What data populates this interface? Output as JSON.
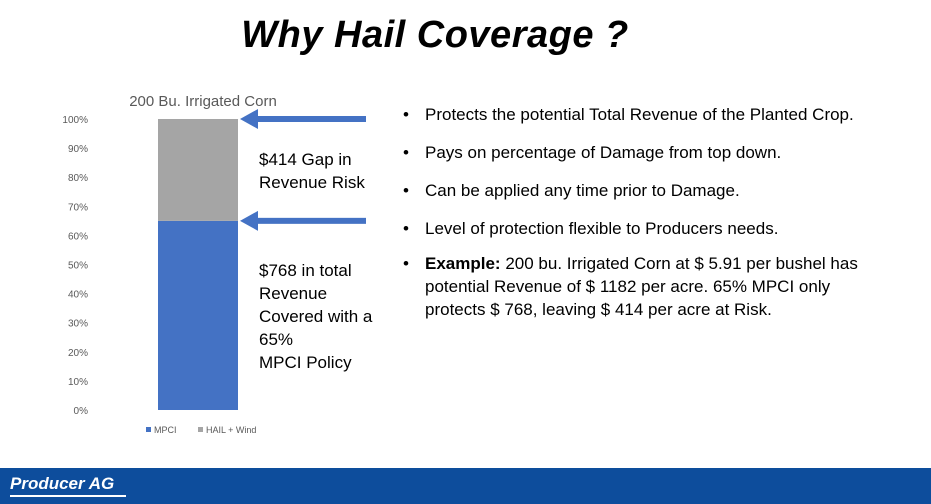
{
  "slide": {
    "title": "Why Hail Coverage ?"
  },
  "chart_data": {
    "type": "bar",
    "stacked": true,
    "title": "200 Bu. Irrigated Corn",
    "categories": [
      ""
    ],
    "series": [
      {
        "name": "MPCI",
        "values": [
          65
        ],
        "color": "#4472c4"
      },
      {
        "name": "HAIL + Wind",
        "values": [
          35
        ],
        "color": "#a5a5a5"
      }
    ],
    "ylim": [
      0,
      100
    ],
    "yticks": [
      0,
      10,
      20,
      30,
      40,
      50,
      60,
      70,
      80,
      90,
      100
    ],
    "ytick_labels": [
      "0%",
      "10%",
      "20%",
      "30%",
      "40%",
      "50%",
      "60%",
      "70%",
      "80%",
      "90%",
      "100%"
    ],
    "legend": "bottom",
    "grid": false
  },
  "annotations": {
    "arrow_color": "#4472c4",
    "gap_text": [
      "$414 Gap in",
      "Revenue Risk"
    ],
    "covered_text": [
      "$768 in total",
      "Revenue",
      "Covered with a",
      "65%",
      "MPCI Policy"
    ]
  },
  "bullets": [
    "Protects the potential Total Revenue of the Planted Crop.",
    "Pays on percentage of Damage from top down.",
    "Can be applied any time prior to Damage.",
    "Level of protection flexible to Producers needs."
  ],
  "example": {
    "label": "Example:",
    "text": " 200 bu. Irrigated Corn at $ 5.91 per bushel has potential Revenue of $ 1182 per acre. 65% MPCI only protects $ 768, leaving $ 414 per acre at Risk."
  },
  "footer": {
    "logo_text": "Producer AG",
    "color": "#0d4d9c"
  }
}
